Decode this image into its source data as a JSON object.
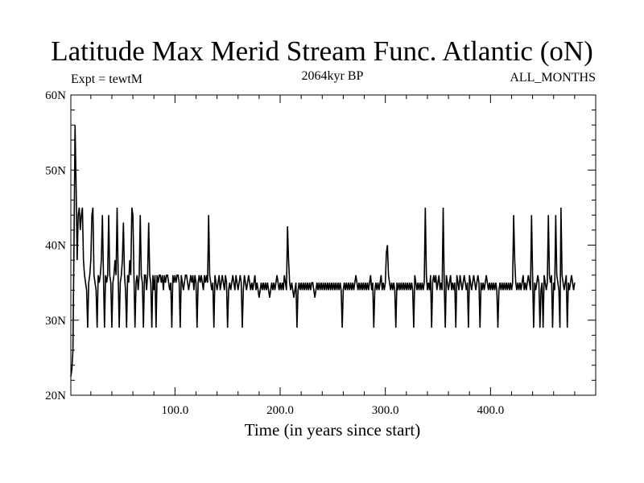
{
  "chart_data": {
    "type": "line",
    "title": "Latitude Max Merid Stream Func. Atlantic (oN)",
    "subtitle": "2064kyr BP",
    "annotation_left": "Expt = tewtM",
    "annotation_right": "ALL_MONTHS",
    "xlabel": "Time (in years since start)",
    "ylabel": "",
    "xlim": [
      1,
      500
    ],
    "ylim": [
      20,
      60
    ],
    "x_ticks": [
      100,
      200,
      300,
      400
    ],
    "x_tick_labels": [
      "100.0",
      "200.0",
      "300.0",
      "400.0"
    ],
    "y_ticks": [
      20,
      30,
      40,
      50,
      60
    ],
    "y_tick_labels": [
      "20N",
      "30N",
      "40N",
      "50N",
      "60N"
    ],
    "grid": false,
    "series": [
      {
        "color": "#000000",
        "x_start": 1,
        "x_step": 1,
        "values": [
          22.5,
          23.5,
          26,
          40,
          56,
          48,
          38,
          44,
          45,
          42,
          44,
          45,
          38,
          36,
          35,
          34,
          29,
          35,
          36,
          38,
          44,
          45,
          36,
          35,
          34,
          29,
          36,
          35,
          36,
          38,
          44,
          36,
          29,
          36,
          35,
          36,
          44,
          36,
          35,
          29,
          35,
          36,
          38,
          36,
          45,
          36,
          29,
          35,
          36,
          38,
          43,
          36,
          34,
          29,
          36,
          35,
          38,
          36,
          45,
          44,
          36,
          29,
          35,
          36,
          34,
          36,
          44,
          36,
          35,
          29,
          36,
          36,
          34,
          36,
          43,
          36,
          35,
          29,
          36,
          34,
          36,
          29,
          36,
          35,
          36,
          36,
          35,
          36,
          34,
          36,
          35,
          36,
          36,
          35,
          34,
          35,
          29,
          36,
          35,
          36,
          35,
          36,
          36,
          35,
          29,
          36,
          35,
          34,
          35,
          36,
          36,
          35,
          34,
          35,
          36,
          35,
          36,
          34,
          36,
          35,
          29,
          35,
          36,
          35,
          36,
          35,
          34,
          36,
          35,
          36,
          35,
          44,
          36,
          35,
          34,
          35,
          29,
          36,
          35,
          34,
          35,
          36,
          34,
          35,
          36,
          35,
          34,
          36,
          35,
          29,
          34,
          35,
          34,
          35,
          36,
          35,
          34,
          36,
          35,
          34,
          35,
          36,
          35,
          29,
          34,
          36,
          35,
          34,
          35,
          36,
          35,
          34,
          35,
          34,
          35,
          36,
          34,
          35,
          34,
          33,
          34,
          35,
          34,
          35,
          34,
          35,
          34,
          35,
          34,
          33,
          34,
          35,
          34,
          35,
          34,
          35,
          36,
          35,
          34,
          35,
          34,
          35,
          34,
          36,
          35,
          34,
          42.5,
          38,
          35,
          34,
          35,
          34,
          33,
          34,
          35,
          29,
          34,
          35,
          34,
          35,
          34,
          35,
          34,
          35,
          34,
          35,
          34,
          35,
          34,
          35,
          35,
          34,
          33,
          34,
          35,
          34,
          35,
          34,
          35,
          34,
          35,
          34,
          35,
          34,
          35,
          34,
          35,
          34,
          35,
          34,
          35,
          34,
          35,
          34,
          35,
          34,
          35,
          34,
          29,
          34,
          35,
          34,
          35,
          34,
          35,
          34,
          35,
          34,
          35,
          34,
          35,
          36,
          35,
          34,
          35,
          34,
          35,
          34,
          35,
          34,
          35,
          34,
          35,
          34,
          35,
          36,
          34,
          35,
          29,
          34,
          35,
          34,
          35,
          34,
          35,
          36,
          34,
          35,
          34,
          35,
          39,
          40,
          36,
          35,
          34,
          35,
          34,
          35,
          34,
          29,
          35,
          34,
          35,
          34,
          35,
          34,
          35,
          34,
          35,
          34,
          35,
          34,
          35,
          34,
          35,
          34,
          29,
          36,
          35,
          34,
          35,
          34,
          35,
          34,
          35,
          34,
          35,
          45,
          36,
          34,
          35,
          34,
          36,
          29,
          35,
          36,
          35,
          36,
          34,
          35,
          36,
          34,
          35,
          34,
          45,
          35,
          29,
          36,
          35,
          34,
          35,
          36,
          34,
          35,
          34,
          35,
          29,
          36,
          35,
          34,
          36,
          35,
          34,
          35,
          36,
          35,
          34,
          35,
          29,
          36,
          35,
          34,
          35,
          36,
          35,
          34,
          35,
          36,
          35,
          29,
          35,
          34,
          35,
          34,
          35,
          36,
          35,
          34,
          35,
          34,
          35,
          34,
          35,
          34,
          35,
          34,
          29,
          34,
          35,
          34,
          35,
          34,
          35,
          34,
          35,
          34,
          35,
          34,
          35,
          34,
          35,
          44,
          38,
          35,
          34,
          35,
          34,
          35,
          34,
          35,
          36,
          34,
          35,
          34,
          35,
          36,
          35,
          34,
          44,
          36,
          29,
          35,
          34,
          35,
          36,
          35,
          29,
          34,
          35,
          29,
          36,
          35,
          34,
          35,
          44,
          36,
          35,
          36,
          29,
          35,
          34,
          44,
          36,
          35,
          34,
          29,
          45,
          36,
          35,
          34,
          35,
          36,
          29,
          35,
          34,
          35,
          36,
          35,
          34,
          35
        ]
      }
    ]
  }
}
